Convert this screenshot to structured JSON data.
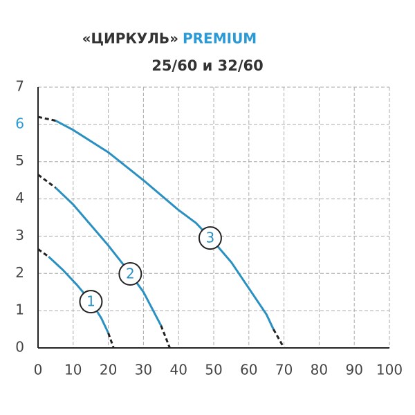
{
  "chart_data": {
    "type": "line",
    "title": "«ЦИРКУЛЬ»",
    "title_highlight": "PREMIUM",
    "subtitle": "25/60 и 32/60",
    "highlight_color": "#2a9ad6",
    "highlight_ytick": 6,
    "xlim": [
      0,
      100
    ],
    "xticks": [
      0,
      10,
      20,
      30,
      40,
      50,
      60,
      70,
      80,
      90,
      100
    ],
    "ylim": [
      0,
      7
    ],
    "yticks": [
      0,
      1,
      2,
      3,
      4,
      5,
      6,
      7
    ],
    "grid": true,
    "dashed_ends": true,
    "series": [
      {
        "name": "1",
        "color": "#2a8fc1",
        "x": [
          0,
          3,
          7,
          11,
          15,
          18,
          20,
          21.5
        ],
        "values": [
          2.65,
          2.45,
          2.1,
          1.7,
          1.25,
          0.8,
          0.4,
          0
        ]
      },
      {
        "name": "2",
        "color": "#2a8fc1",
        "x": [
          0,
          5,
          10,
          15,
          20,
          25,
          30,
          35,
          37.5
        ],
        "values": [
          4.65,
          4.3,
          3.85,
          3.3,
          2.75,
          2.15,
          1.5,
          0.6,
          0
        ]
      },
      {
        "name": "3",
        "color": "#2a8fc1",
        "x": [
          0,
          5,
          10,
          20,
          30,
          40,
          45,
          50,
          55,
          60,
          65,
          67,
          70
        ],
        "values": [
          6.2,
          6.1,
          5.85,
          5.25,
          4.5,
          3.7,
          3.35,
          2.85,
          2.3,
          1.6,
          0.9,
          0.5,
          0
        ]
      }
    ]
  }
}
